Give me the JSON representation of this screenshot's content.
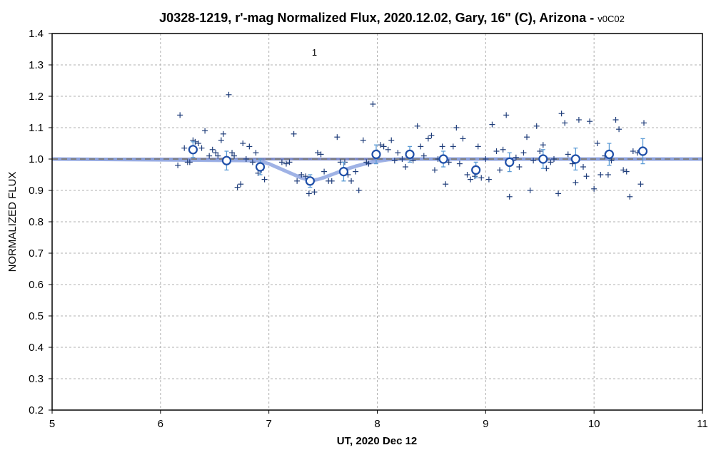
{
  "chart_data": {
    "type": "scatter",
    "title": "J0328-1219, r'-mag Normalized Flux, 2020.12.02, Gary, 16\" (C), Arizona - ",
    "title_suffix": "v0C02",
    "xlabel": "UT, 2020 Dec 12",
    "ylabel": "NORMALIZED FLUX",
    "xlim": [
      5,
      11
    ],
    "ylim": [
      0.2,
      1.4
    ],
    "xticks": [
      "5",
      "6",
      "7",
      "8",
      "9",
      "10",
      "11"
    ],
    "yticks": [
      "0.2",
      "0.3",
      "0.4",
      "0.5",
      "0.6",
      "0.7",
      "0.8",
      "0.9",
      "1.0",
      "1.1",
      "1.2",
      "1.3",
      "1.4"
    ],
    "grid": true,
    "annotations": [
      {
        "text": "1",
        "x": 7.42,
        "y": 1.33
      }
    ],
    "reference_line": {
      "y": 1.0,
      "style": "dashed",
      "color": "#808080"
    },
    "colors": {
      "individual": "#1f3d7a",
      "average": "#1f4fa8",
      "errorbar": "#5b9bd5",
      "model": "#8ea4e0",
      "reference": "#808080",
      "baseline": "#5a6ab8"
    },
    "series": [
      {
        "marker": "plus",
        "x": [
          6.16,
          6.18,
          6.22,
          6.25,
          6.27,
          6.3,
          6.32,
          6.35,
          6.38,
          6.41,
          6.45,
          6.48,
          6.51,
          6.53,
          6.56,
          6.58,
          6.6,
          6.63,
          6.66,
          6.68,
          6.71,
          6.74,
          6.76,
          6.79,
          6.82,
          6.85,
          6.88,
          6.9,
          6.93,
          6.96,
          7.12,
          7.16,
          7.19,
          7.23,
          7.26,
          7.3,
          7.34,
          7.37,
          7.4,
          7.42,
          7.45,
          7.48,
          7.51,
          7.55,
          7.58,
          7.63,
          7.66,
          7.7,
          7.73,
          7.76,
          7.8,
          7.83,
          7.87,
          7.9,
          7.92,
          7.96,
          8.0,
          8.03,
          8.06,
          8.1,
          8.13,
          8.16,
          8.19,
          8.23,
          8.26,
          8.3,
          8.33,
          8.37,
          8.4,
          8.43,
          8.47,
          8.5,
          8.53,
          8.56,
          8.6,
          8.63,
          8.66,
          8.7,
          8.73,
          8.76,
          8.79,
          8.83,
          8.86,
          8.9,
          8.93,
          8.96,
          9.0,
          9.03,
          9.06,
          9.1,
          9.13,
          9.16,
          9.19,
          9.22,
          9.25,
          9.28,
          9.31,
          9.35,
          9.38,
          9.41,
          9.44,
          9.47,
          9.5,
          9.53,
          9.56,
          9.6,
          9.63,
          9.67,
          9.7,
          9.73,
          9.76,
          9.8,
          9.83,
          9.86,
          9.9,
          9.93,
          9.96,
          10.0,
          10.03,
          10.06,
          10.1,
          10.13,
          10.16,
          10.2,
          10.23,
          10.27,
          10.3,
          10.33,
          10.36,
          10.4,
          10.43,
          10.46
        ],
        "y": [
          0.98,
          1.14,
          1.035,
          0.99,
          0.99,
          1.06,
          1.055,
          1.05,
          1.035,
          1.09,
          1.01,
          1.03,
          1.02,
          1.01,
          1.06,
          1.08,
          1.0,
          1.205,
          1.02,
          1.01,
          0.91,
          0.92,
          1.05,
          1.0,
          1.04,
          0.99,
          1.02,
          0.955,
          0.965,
          0.935,
          0.99,
          0.985,
          0.99,
          1.08,
          0.93,
          0.95,
          0.945,
          0.89,
          0.93,
          0.895,
          1.02,
          1.015,
          0.96,
          0.93,
          0.93,
          1.07,
          0.99,
          0.99,
          0.95,
          0.93,
          0.96,
          0.9,
          1.06,
          0.99,
          0.985,
          1.175,
          1.01,
          1.045,
          1.04,
          1.03,
          1.06,
          0.995,
          1.02,
          1.0,
          0.975,
          1.01,
          0.995,
          1.105,
          1.04,
          1.01,
          1.065,
          1.075,
          0.965,
          1.0,
          1.04,
          0.92,
          0.99,
          1.04,
          1.1,
          0.985,
          1.065,
          0.95,
          0.935,
          0.945,
          1.04,
          0.94,
          1.0,
          0.935,
          1.11,
          1.025,
          0.965,
          1.03,
          1.14,
          0.88,
          0.995,
          1.005,
          0.975,
          1.02,
          1.07,
          0.9,
          0.995,
          1.105,
          1.025,
          1.045,
          0.97,
          0.99,
          1.0,
          0.89,
          1.145,
          1.115,
          1.015,
          0.985,
          0.925,
          1.125,
          0.975,
          0.945,
          1.12,
          0.905,
          1.05,
          0.95,
          1.01,
          0.95,
          0.995,
          1.125,
          1.095,
          0.965,
          0.96,
          0.88,
          1.025,
          1.02,
          0.92,
          1.115
        ]
      },
      {
        "marker": "circle",
        "x": [
          6.3,
          6.61,
          6.92,
          7.38,
          7.69,
          7.99,
          8.3,
          8.61,
          8.91,
          9.22,
          9.53,
          9.83,
          10.14,
          10.45
        ],
        "y": [
          1.03,
          0.995,
          0.975,
          0.93,
          0.96,
          1.015,
          1.015,
          1.0,
          0.965,
          0.99,
          1.0,
          1.0,
          1.015,
          1.025
        ],
        "err": [
          0.025,
          0.03,
          0.025,
          0.02,
          0.03,
          0.03,
          0.025,
          0.025,
          0.025,
          0.03,
          0.03,
          0.035,
          0.035,
          0.04
        ]
      },
      {
        "marker": "line",
        "x": [
          5.0,
          6.9,
          7.0,
          7.1,
          7.2,
          7.3,
          7.35,
          7.4,
          7.45,
          7.5,
          7.6,
          7.7,
          7.8,
          7.9,
          8.0,
          8.1,
          8.2,
          11.0
        ],
        "y": [
          1.0,
          0.995,
          0.985,
          0.97,
          0.955,
          0.94,
          0.935,
          0.932,
          0.935,
          0.94,
          0.953,
          0.966,
          0.977,
          0.986,
          0.993,
          0.998,
          1.0,
          1.0
        ]
      }
    ]
  }
}
